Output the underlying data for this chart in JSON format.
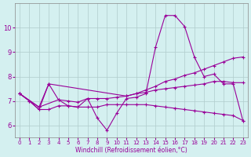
{
  "xlabel": "Windchill (Refroidissement éolien,°C)",
  "xlim": [
    -0.5,
    23.5
  ],
  "ylim": [
    5.5,
    11.0
  ],
  "xticks": [
    0,
    1,
    2,
    3,
    4,
    5,
    6,
    7,
    8,
    9,
    10,
    11,
    12,
    13,
    14,
    15,
    16,
    17,
    18,
    19,
    20,
    21,
    22,
    23
  ],
  "yticks": [
    6,
    7,
    8,
    9,
    10
  ],
  "background_color": "#d4f0f0",
  "grid_color": "#b0cccc",
  "line_color": "#990099",
  "lines": [
    {
      "x": [
        0,
        1,
        2,
        3,
        4,
        5,
        6,
        7,
        8,
        9,
        10,
        11,
        12,
        13,
        14,
        15,
        16,
        17,
        18,
        19,
        20,
        21,
        22,
        23
      ],
      "y": [
        7.3,
        7.0,
        6.65,
        7.7,
        7.05,
        6.8,
        6.75,
        7.1,
        6.3,
        5.8,
        6.5,
        7.1,
        7.15,
        7.3,
        9.2,
        10.5,
        10.5,
        10.05,
        8.8,
        8.0,
        8.1,
        7.7,
        7.7,
        6.2
      ]
    },
    {
      "x": [
        0,
        2,
        3,
        11,
        12,
        13,
        14,
        15,
        16,
        17,
        18,
        19,
        20,
        21,
        22,
        23
      ],
      "y": [
        7.3,
        6.75,
        7.7,
        7.2,
        7.3,
        7.45,
        7.6,
        7.8,
        7.9,
        8.05,
        8.15,
        8.3,
        8.45,
        8.6,
        8.75,
        8.8
      ]
    },
    {
      "x": [
        0,
        2,
        4,
        5,
        6,
        7,
        8,
        9,
        10,
        11,
        12,
        13,
        14,
        15,
        16,
        17,
        18,
        19,
        20,
        21,
        22,
        23
      ],
      "y": [
        7.3,
        6.75,
        7.05,
        7.0,
        6.95,
        7.1,
        7.1,
        7.1,
        7.15,
        7.2,
        7.3,
        7.35,
        7.45,
        7.5,
        7.55,
        7.6,
        7.65,
        7.7,
        7.8,
        7.8,
        7.75,
        7.75
      ]
    },
    {
      "x": [
        0,
        1,
        2,
        3,
        4,
        5,
        6,
        7,
        8,
        9,
        10,
        11,
        12,
        13,
        14,
        15,
        16,
        17,
        18,
        19,
        20,
        21,
        22,
        23
      ],
      "y": [
        7.3,
        7.0,
        6.65,
        6.65,
        6.8,
        6.8,
        6.75,
        6.75,
        6.75,
        6.85,
        6.85,
        6.85,
        6.85,
        6.85,
        6.8,
        6.75,
        6.7,
        6.65,
        6.6,
        6.55,
        6.5,
        6.45,
        6.4,
        6.2
      ]
    }
  ]
}
